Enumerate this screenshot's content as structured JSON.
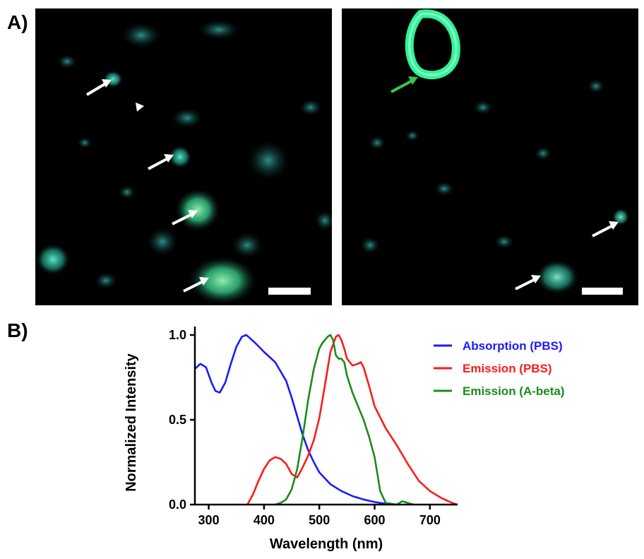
{
  "figure": {
    "panel_a_label": "A)",
    "panel_b_label": "B)"
  },
  "colors": {
    "absorption": "#1a1aff",
    "emission_pbs": "#ff1a1a",
    "emission_abeta": "#1a8c1a",
    "stain": "#3de8c8",
    "vessel": "#2ef59a",
    "white_arrow": "#ffffff",
    "green_arrow": "#3cc44a"
  },
  "micrographs": [
    {
      "name": "left",
      "annotations": [
        "white-arrow",
        "white-arrow",
        "white-arrow",
        "white-arrow",
        "arrowhead",
        "scale-bar"
      ]
    },
    {
      "name": "right",
      "annotations": [
        "green-arrow",
        "white-arrow",
        "white-arrow",
        "scale-bar"
      ]
    }
  ],
  "chart_data": {
    "type": "line",
    "xlabel": "Wavelength (nm)",
    "ylabel": "Normalized Intensity",
    "xlim": [
      275,
      750
    ],
    "ylim": [
      0,
      1.05
    ],
    "xticks": [
      300,
      400,
      500,
      600,
      700
    ],
    "yticks": [
      0.0,
      0.5,
      1.0
    ],
    "ytick_labels": [
      "0.0",
      "0.5",
      "1.0"
    ],
    "legend_position": "right",
    "series": [
      {
        "name": "Absorption (PBS)",
        "color": "#1a1aff",
        "x": [
          275,
          285,
          295,
          305,
          312,
          320,
          330,
          340,
          350,
          360,
          368,
          375,
          385,
          400,
          420,
          440,
          450,
          460,
          470,
          480,
          490,
          500,
          520,
          540,
          560,
          580,
          600,
          620,
          640
        ],
        "y": [
          0.8,
          0.83,
          0.81,
          0.72,
          0.67,
          0.66,
          0.72,
          0.83,
          0.93,
          0.99,
          1.0,
          0.98,
          0.95,
          0.9,
          0.84,
          0.73,
          0.63,
          0.52,
          0.41,
          0.32,
          0.25,
          0.19,
          0.12,
          0.08,
          0.05,
          0.03,
          0.015,
          0.005,
          0.0
        ]
      },
      {
        "name": "Emission (PBS)",
        "color": "#ff1a1a",
        "x": [
          370,
          380,
          390,
          400,
          410,
          420,
          430,
          440,
          450,
          460,
          470,
          480,
          490,
          500,
          510,
          520,
          530,
          535,
          540,
          545,
          550,
          560,
          570,
          575,
          580,
          590,
          600,
          620,
          640,
          660,
          680,
          700,
          720,
          740,
          750
        ],
        "y": [
          0.0,
          0.06,
          0.14,
          0.21,
          0.26,
          0.28,
          0.27,
          0.24,
          0.18,
          0.16,
          0.22,
          0.29,
          0.38,
          0.51,
          0.7,
          0.9,
          0.99,
          1.0,
          0.97,
          0.92,
          0.86,
          0.82,
          0.83,
          0.84,
          0.81,
          0.7,
          0.58,
          0.45,
          0.35,
          0.24,
          0.14,
          0.08,
          0.04,
          0.01,
          0.0
        ]
      },
      {
        "name": "Emission (A-beta)",
        "color": "#1a8c1a",
        "x": [
          420,
          430,
          440,
          450,
          460,
          470,
          480,
          490,
          500,
          505,
          510,
          515,
          520,
          525,
          530,
          535,
          540,
          545,
          550,
          560,
          570,
          580,
          590,
          600,
          610,
          620,
          640,
          650,
          660,
          670
        ],
        "y": [
          0.0,
          0.01,
          0.03,
          0.09,
          0.21,
          0.4,
          0.62,
          0.8,
          0.92,
          0.95,
          0.97,
          0.99,
          1.0,
          0.97,
          0.88,
          0.86,
          0.86,
          0.84,
          0.76,
          0.66,
          0.58,
          0.5,
          0.4,
          0.28,
          0.08,
          0.01,
          0.0,
          0.02,
          0.01,
          0.0
        ]
      }
    ]
  }
}
